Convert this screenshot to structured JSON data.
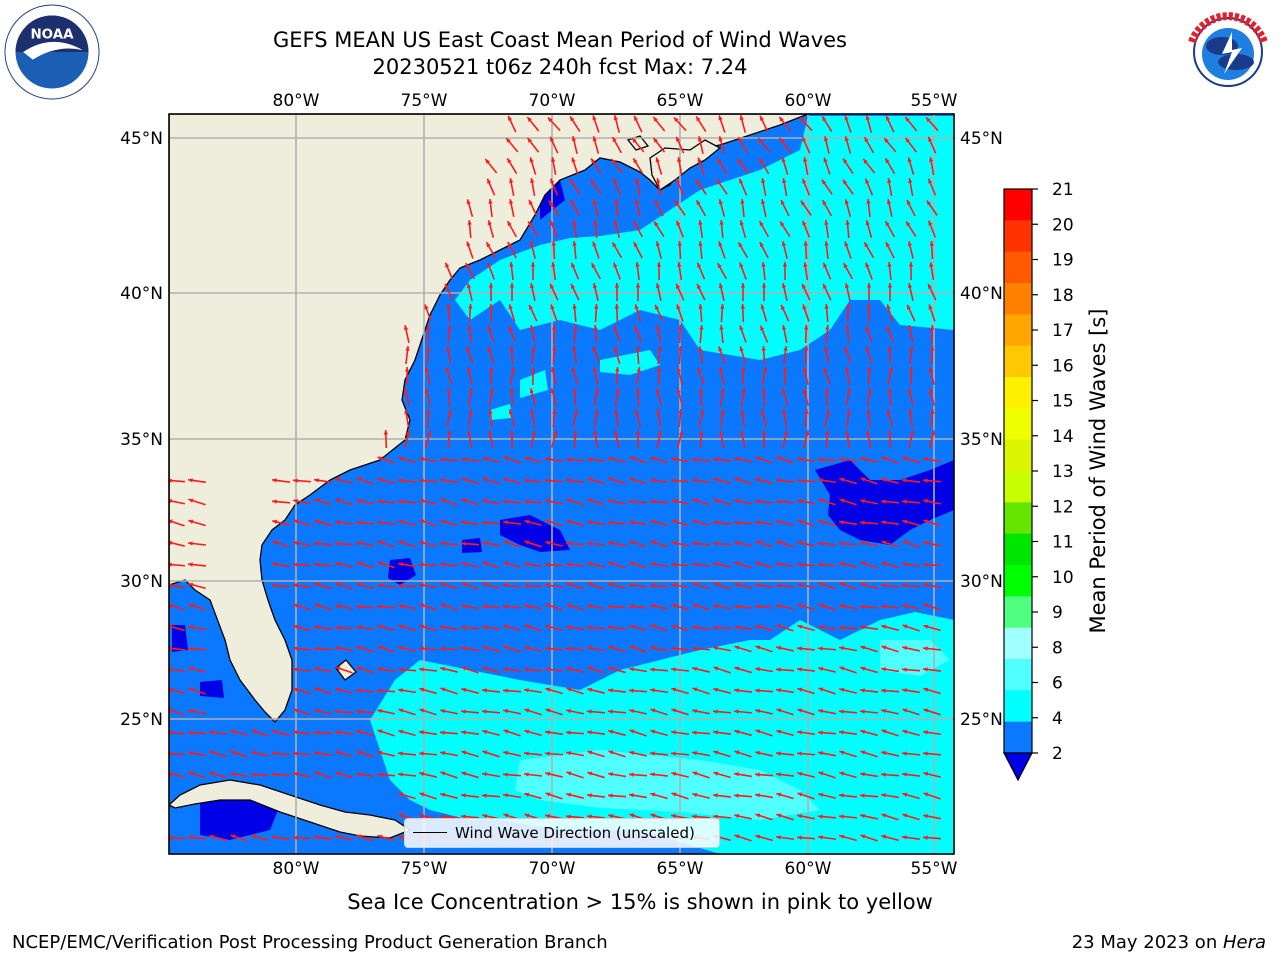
{
  "header": {
    "title_line_1": "GEFS MEAN US East Coast Mean Period of Wind Waves",
    "title_line_2": "20230521 t06z 240h fcst   Max: 7.24"
  },
  "logos": {
    "left": "noaa-logo",
    "right": "nws-logo"
  },
  "map": {
    "lon_ticks": [
      "80°W",
      "75°W",
      "70°W",
      "65°W",
      "60°W",
      "55°W"
    ],
    "lat_ticks": [
      "45°N",
      "40°N",
      "35°N",
      "30°N",
      "25°N"
    ],
    "lon_range": [
      -85,
      -54.5
    ],
    "lat_range": [
      20.5,
      45.8
    ],
    "colors": {
      "land": "#efeddc",
      "sea_2_4": "#0a78ff",
      "sea_4_6": "#00ffff",
      "sea_below_2": "#0000e6",
      "arrow": "#ff1a1a",
      "grid": "#b0b0b0"
    }
  },
  "colorbar": {
    "label": "Mean Period of Wind Waves [s]",
    "ticks": [
      "21",
      "20",
      "19",
      "18",
      "17",
      "16",
      "15",
      "14",
      "13",
      "12",
      "11",
      "10",
      "9",
      "8",
      "6",
      "4",
      "2"
    ],
    "colors_top_to_bottom": [
      "#ff0000",
      "#ff3300",
      "#ff5a00",
      "#ff8000",
      "#ffa500",
      "#ffc800",
      "#fff000",
      "#f0ff00",
      "#dcf500",
      "#c8ff00",
      "#64e600",
      "#00e600",
      "#00ff00",
      "#50ff80",
      "#a0ffff",
      "#50ffff",
      "#00ffff",
      "#0a78ff"
    ],
    "extend_color": "#0000e6"
  },
  "legend": {
    "label": "Wind Wave Direction (unscaled)"
  },
  "notes": {
    "sea_ice": "Sea Ice Concentration > 15% is shown in pink to yellow"
  },
  "footer": {
    "left": "NCEP/EMC/Verification Post Processing Product Generation Branch",
    "right_date": "23 May 2023 on ",
    "right_machine": "Hera"
  }
}
